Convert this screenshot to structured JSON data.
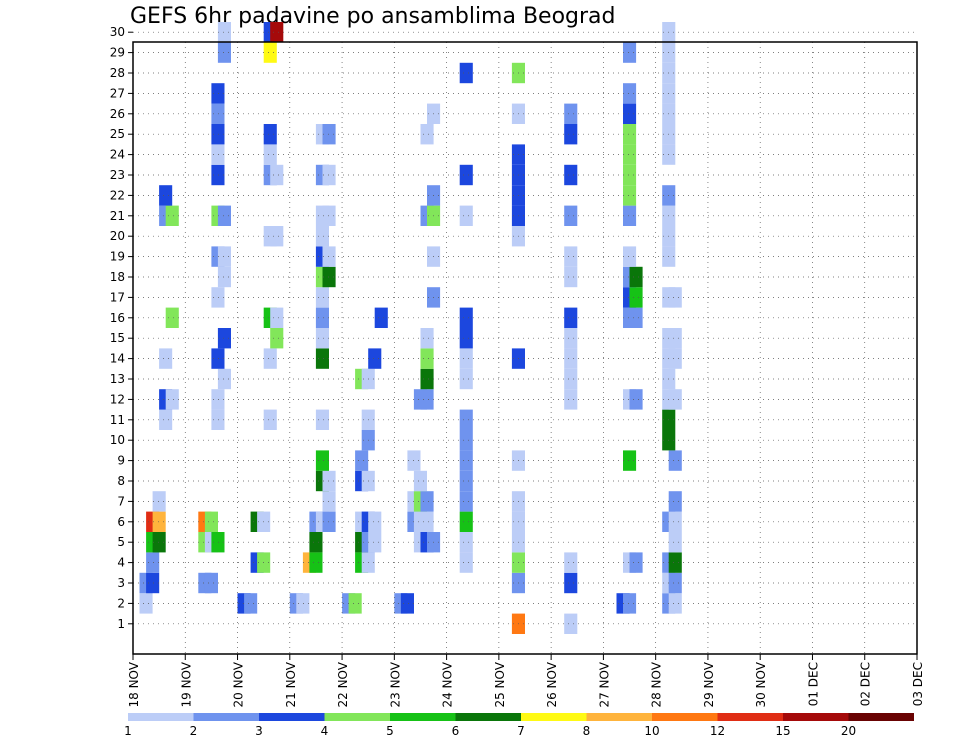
{
  "chart_data": {
    "type": "heatmap",
    "title": "GEFS 6hr padavine po ansamblima Beograd",
    "x_labels": [
      "18 NOV",
      "19 NOV",
      "20 NOV",
      "21 NOV",
      "22 NOV",
      "23 NOV",
      "24 NOV",
      "25 NOV",
      "26 NOV",
      "27 NOV",
      "28 NOV",
      "29 NOV",
      "30 NOV",
      "01 DEC",
      "02 DEC",
      "03 DEC"
    ],
    "y_labels": [
      "1",
      "2",
      "3",
      "4",
      "5",
      "6",
      "7",
      "8",
      "9",
      "10",
      "11",
      "12",
      "13",
      "14",
      "15",
      "16",
      "17",
      "18",
      "19",
      "20",
      "21",
      "22",
      "23",
      "24",
      "25",
      "26",
      "27",
      "28",
      "29",
      "30"
    ],
    "grid": true,
    "legend": {
      "position": "bottom",
      "colors": [
        "#bccdf7",
        "#6f93ee",
        "#1c47de",
        "#82e65a",
        "#16c216",
        "#0a760a",
        "#fffa14",
        "#ffb43c",
        "#ff7812",
        "#e02d14",
        "#a50a0a",
        "#690303"
      ],
      "labels": [
        "1",
        "2",
        "3",
        "4",
        "5",
        "6",
        "7",
        "8",
        "10",
        "12",
        "15",
        "20"
      ]
    },
    "cells": [
      [
        0,
        1,
        3,
        1
      ],
      [
        0,
        2,
        3,
        2
      ],
      [
        0,
        2,
        4,
        3
      ],
      [
        0,
        3,
        4,
        2
      ],
      [
        0,
        4,
        4,
        5
      ],
      [
        0,
        4,
        5,
        6
      ],
      [
        0,
        5,
        4,
        10
      ],
      [
        0,
        5,
        5,
        8
      ],
      [
        0,
        6,
        5,
        1
      ],
      [
        0,
        10,
        6,
        1
      ],
      [
        0,
        11,
        6,
        3
      ],
      [
        0,
        11,
        7,
        1
      ],
      [
        0,
        13,
        6,
        1
      ],
      [
        0,
        15,
        7,
        4
      ],
      [
        0,
        20,
        6,
        2
      ],
      [
        0,
        20,
        7,
        4
      ],
      [
        0,
        21,
        6,
        3
      ],
      [
        1,
        2,
        4,
        2
      ],
      [
        1,
        2,
        5,
        2
      ],
      [
        1,
        4,
        4,
        4
      ],
      [
        1,
        4,
        5,
        1
      ],
      [
        1,
        4,
        6,
        5
      ],
      [
        1,
        5,
        4,
        9
      ],
      [
        1,
        5,
        5,
        4
      ],
      [
        1,
        10,
        6,
        1
      ],
      [
        1,
        11,
        6,
        1
      ],
      [
        1,
        12,
        7,
        1
      ],
      [
        1,
        13,
        6,
        3
      ],
      [
        1,
        14,
        7,
        3
      ],
      [
        1,
        16,
        6,
        1
      ],
      [
        1,
        17,
        7,
        1
      ],
      [
        1,
        18,
        6,
        2
      ],
      [
        1,
        18,
        7,
        1
      ],
      [
        1,
        20,
        6,
        4
      ],
      [
        1,
        20,
        7,
        2
      ],
      [
        1,
        22,
        6,
        3
      ],
      [
        1,
        23,
        6,
        1
      ],
      [
        1,
        24,
        6,
        3
      ],
      [
        1,
        25,
        6,
        2
      ],
      [
        1,
        26,
        6,
        3
      ],
      [
        1,
        28,
        7,
        2
      ],
      [
        1,
        29,
        7,
        1
      ],
      [
        2,
        1,
        2,
        3
      ],
      [
        2,
        1,
        3,
        2
      ],
      [
        2,
        3,
        4,
        3
      ],
      [
        2,
        3,
        5,
        4
      ],
      [
        2,
        5,
        4,
        6
      ],
      [
        2,
        5,
        5,
        1
      ],
      [
        2,
        10,
        6,
        1
      ],
      [
        2,
        13,
        6,
        1
      ],
      [
        2,
        14,
        7,
        4
      ],
      [
        2,
        15,
        6,
        5
      ],
      [
        2,
        15,
        7,
        1
      ],
      [
        2,
        19,
        6,
        1
      ],
      [
        2,
        19,
        7,
        1
      ],
      [
        2,
        22,
        6,
        2
      ],
      [
        2,
        22,
        7,
        1
      ],
      [
        2,
        23,
        6,
        1
      ],
      [
        2,
        24,
        6,
        3
      ],
      [
        2,
        28,
        6,
        7
      ],
      [
        2,
        29,
        6,
        3
      ],
      [
        2,
        29,
        7,
        11
      ],
      [
        3,
        1,
        2,
        2
      ],
      [
        3,
        1,
        3,
        1
      ],
      [
        3,
        3,
        4,
        8
      ],
      [
        3,
        3,
        5,
        5
      ],
      [
        3,
        4,
        5,
        6
      ],
      [
        3,
        5,
        5,
        2
      ],
      [
        3,
        5,
        6,
        1
      ],
      [
        3,
        5,
        7,
        2
      ],
      [
        3,
        6,
        7,
        1
      ],
      [
        3,
        7,
        6,
        6
      ],
      [
        3,
        7,
        7,
        1
      ],
      [
        3,
        8,
        6,
        5
      ],
      [
        3,
        10,
        6,
        1
      ],
      [
        3,
        13,
        6,
        6
      ],
      [
        3,
        14,
        6,
        1
      ],
      [
        3,
        15,
        6,
        2
      ],
      [
        3,
        16,
        6,
        1
      ],
      [
        3,
        17,
        6,
        4
      ],
      [
        3,
        17,
        7,
        6
      ],
      [
        3,
        18,
        6,
        3
      ],
      [
        3,
        18,
        7,
        1
      ],
      [
        3,
        19,
        6,
        1
      ],
      [
        3,
        20,
        6,
        1
      ],
      [
        3,
        20,
        7,
        1
      ],
      [
        3,
        22,
        6,
        2
      ],
      [
        3,
        22,
        7,
        1
      ],
      [
        3,
        24,
        6,
        1
      ],
      [
        3,
        24,
        7,
        2
      ],
      [
        4,
        1,
        2,
        2
      ],
      [
        4,
        1,
        3,
        4
      ],
      [
        4,
        3,
        4,
        5
      ],
      [
        4,
        3,
        5,
        1
      ],
      [
        4,
        4,
        4,
        6
      ],
      [
        4,
        4,
        5,
        2
      ],
      [
        4,
        4,
        6,
        1
      ],
      [
        4,
        5,
        4,
        1
      ],
      [
        4,
        5,
        5,
        3
      ],
      [
        4,
        5,
        6,
        1
      ],
      [
        4,
        7,
        4,
        3
      ],
      [
        4,
        7,
        5,
        1
      ],
      [
        4,
        8,
        4,
        2
      ],
      [
        4,
        9,
        5,
        2
      ],
      [
        4,
        10,
        5,
        1
      ],
      [
        4,
        12,
        4,
        4
      ],
      [
        4,
        12,
        5,
        1
      ],
      [
        4,
        13,
        6,
        3
      ],
      [
        4,
        15,
        7,
        3
      ],
      [
        5,
        1,
        2,
        2
      ],
      [
        5,
        1,
        3,
        3
      ],
      [
        5,
        4,
        5,
        1
      ],
      [
        5,
        4,
        6,
        3
      ],
      [
        5,
        4,
        7,
        2
      ],
      [
        5,
        5,
        4,
        2
      ],
      [
        5,
        5,
        5,
        1
      ],
      [
        5,
        5,
        6,
        1
      ],
      [
        5,
        6,
        4,
        1
      ],
      [
        5,
        6,
        5,
        4
      ],
      [
        5,
        6,
        6,
        2
      ],
      [
        5,
        7,
        5,
        1
      ],
      [
        5,
        8,
        4,
        1
      ],
      [
        5,
        11,
        5,
        2
      ],
      [
        5,
        11,
        6,
        2
      ],
      [
        5,
        12,
        6,
        6
      ],
      [
        5,
        13,
        6,
        4
      ],
      [
        5,
        14,
        6,
        1
      ],
      [
        5,
        16,
        7,
        2
      ],
      [
        5,
        18,
        7,
        1
      ],
      [
        5,
        20,
        6,
        2
      ],
      [
        5,
        20,
        7,
        4
      ],
      [
        5,
        21,
        7,
        2
      ],
      [
        5,
        24,
        6,
        1
      ],
      [
        5,
        25,
        7,
        1
      ],
      [
        6,
        3,
        4,
        1
      ],
      [
        6,
        4,
        4,
        1
      ],
      [
        6,
        5,
        4,
        5
      ],
      [
        6,
        6,
        4,
        2
      ],
      [
        6,
        7,
        4,
        2
      ],
      [
        6,
        8,
        4,
        2
      ],
      [
        6,
        9,
        4,
        2
      ],
      [
        6,
        10,
        4,
        2
      ],
      [
        6,
        12,
        4,
        1
      ],
      [
        6,
        13,
        4,
        1
      ],
      [
        6,
        14,
        4,
        3
      ],
      [
        6,
        15,
        4,
        3
      ],
      [
        6,
        20,
        4,
        1
      ],
      [
        6,
        22,
        4,
        3
      ],
      [
        6,
        27,
        4,
        3
      ],
      [
        7,
        0,
        4,
        9
      ],
      [
        7,
        2,
        4,
        2
      ],
      [
        7,
        3,
        4,
        4
      ],
      [
        7,
        4,
        4,
        1
      ],
      [
        7,
        5,
        4,
        1
      ],
      [
        7,
        6,
        4,
        1
      ],
      [
        7,
        8,
        4,
        1
      ],
      [
        7,
        13,
        4,
        3
      ],
      [
        7,
        19,
        4,
        1
      ],
      [
        7,
        20,
        4,
        3
      ],
      [
        7,
        21,
        4,
        3
      ],
      [
        7,
        22,
        4,
        3
      ],
      [
        7,
        23,
        4,
        3
      ],
      [
        7,
        25,
        4,
        1
      ],
      [
        7,
        27,
        4,
        4
      ],
      [
        8,
        0,
        4,
        1
      ],
      [
        8,
        2,
        4,
        3
      ],
      [
        8,
        3,
        4,
        1
      ],
      [
        8,
        11,
        4,
        1
      ],
      [
        8,
        12,
        4,
        1
      ],
      [
        8,
        13,
        4,
        1
      ],
      [
        8,
        14,
        4,
        1
      ],
      [
        8,
        15,
        4,
        3
      ],
      [
        8,
        17,
        4,
        1
      ],
      [
        8,
        18,
        4,
        1
      ],
      [
        8,
        20,
        4,
        2
      ],
      [
        8,
        22,
        4,
        3
      ],
      [
        8,
        24,
        4,
        3
      ],
      [
        8,
        25,
        4,
        2
      ]
    ],
    "cells_part2": [
      [
        9,
        1,
        4,
        3
      ],
      [
        9,
        1,
        5,
        2
      ],
      [
        9,
        3,
        5,
        1
      ],
      [
        9,
        3,
        6,
        2
      ],
      [
        9,
        8,
        5,
        5
      ],
      [
        9,
        11,
        5,
        1
      ],
      [
        9,
        11,
        6,
        2
      ],
      [
        9,
        15,
        5,
        2
      ],
      [
        9,
        15,
        6,
        2
      ],
      [
        9,
        16,
        5,
        3
      ],
      [
        9,
        16,
        6,
        5
      ],
      [
        9,
        17,
        5,
        2
      ],
      [
        9,
        17,
        6,
        6
      ],
      [
        9,
        18,
        5,
        1
      ],
      [
        9,
        20,
        5,
        2
      ],
      [
        9,
        21,
        5,
        4
      ],
      [
        9,
        22,
        5,
        4
      ],
      [
        9,
        23,
        5,
        4
      ],
      [
        9,
        24,
        5,
        4
      ],
      [
        9,
        25,
        5,
        3
      ],
      [
        9,
        26,
        5,
        2
      ],
      [
        9,
        28,
        5,
        2
      ],
      [
        10,
        1,
        3,
        2
      ],
      [
        10,
        1,
        4,
        1
      ],
      [
        10,
        2,
        3,
        1
      ],
      [
        10,
        2,
        4,
        2
      ],
      [
        10,
        3,
        3,
        2
      ],
      [
        10,
        3,
        4,
        6
      ],
      [
        10,
        4,
        4,
        1
      ],
      [
        10,
        5,
        3,
        2
      ],
      [
        10,
        5,
        4,
        1
      ],
      [
        10,
        6,
        4,
        2
      ],
      [
        10,
        8,
        4,
        2
      ],
      [
        10,
        9,
        3,
        6
      ],
      [
        10,
        10,
        3,
        6
      ],
      [
        10,
        11,
        3,
        1
      ],
      [
        10,
        11,
        4,
        1
      ],
      [
        10,
        12,
        3,
        1
      ],
      [
        10,
        13,
        3,
        1
      ],
      [
        10,
        13,
        4,
        1
      ],
      [
        10,
        14,
        3,
        1
      ],
      [
        10,
        14,
        4,
        1
      ],
      [
        10,
        16,
        3,
        1
      ],
      [
        10,
        16,
        4,
        1
      ],
      [
        10,
        18,
        3,
        1
      ],
      [
        10,
        19,
        3,
        1
      ],
      [
        10,
        20,
        3,
        1
      ],
      [
        10,
        21,
        3,
        2
      ],
      [
        10,
        23,
        3,
        1
      ],
      [
        10,
        24,
        3,
        1
      ],
      [
        10,
        25,
        3,
        1
      ],
      [
        10,
        26,
        3,
        1
      ],
      [
        10,
        27,
        3,
        1
      ],
      [
        10,
        28,
        3,
        1
      ],
      [
        10,
        29,
        3,
        1
      ]
    ],
    "note": "cells are [column, row, x_sixth_hour_index_group, value]"
  }
}
